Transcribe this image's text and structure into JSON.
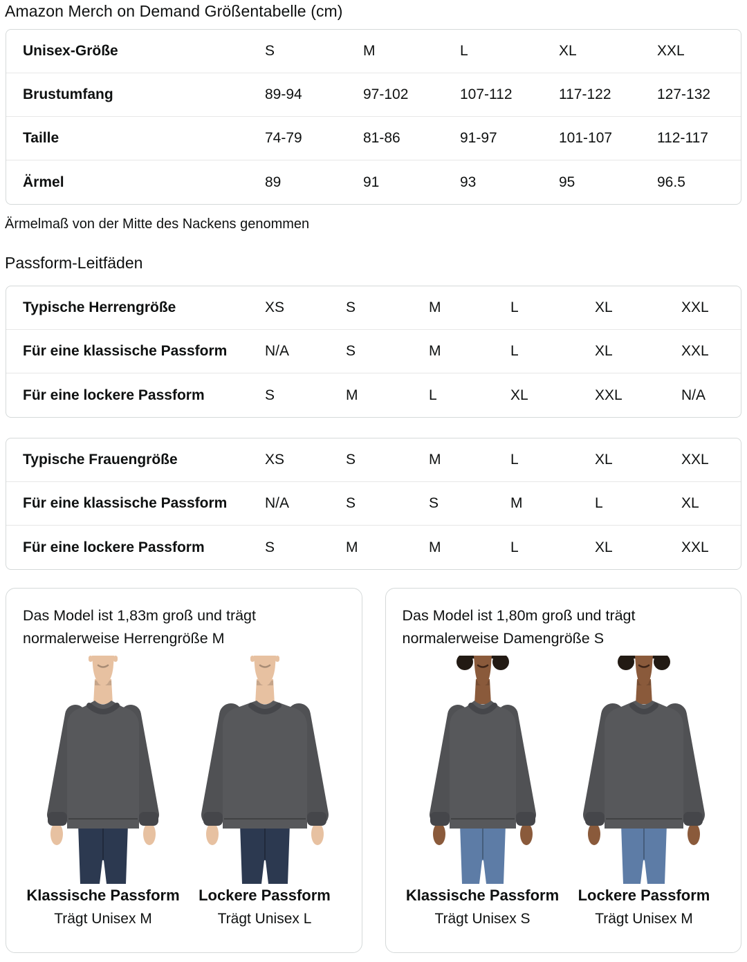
{
  "page": {
    "title": "Amazon Merch on Demand Größentabelle (cm)",
    "note": "Ärmelmaß von der Mitte des Nackens genommen",
    "fit_guides_heading": "Passform-Leitfäden"
  },
  "size_table": {
    "rows": [
      {
        "label": "Unisex-Größe",
        "values": [
          "S",
          "M",
          "L",
          "XL",
          "XXL"
        ]
      },
      {
        "label": "Brustumfang",
        "values": [
          "89-94",
          "97-102",
          "107-112",
          "117-122",
          "127-132"
        ]
      },
      {
        "label": "Taille",
        "values": [
          "74-79",
          "81-86",
          "91-97",
          "101-107",
          "112-117"
        ]
      },
      {
        "label": "Ärmel",
        "values": [
          "89",
          "91",
          "93",
          "95",
          "96.5"
        ]
      }
    ]
  },
  "mens_fit_table": {
    "rows": [
      {
        "label": "Typische Herrengröße",
        "values": [
          "XS",
          "S",
          "M",
          "L",
          "XL",
          "XXL"
        ]
      },
      {
        "label": "Für eine klassische Passform",
        "values": [
          "N/A",
          "S",
          "M",
          "L",
          "XL",
          "XXL"
        ]
      },
      {
        "label": "Für eine lockere Passform",
        "values": [
          "S",
          "M",
          "L",
          "XL",
          "XXL",
          "N/A"
        ]
      }
    ]
  },
  "womens_fit_table": {
    "rows": [
      {
        "label": "Typische Frauengröße",
        "values": [
          "XS",
          "S",
          "M",
          "L",
          "XL",
          "XXL"
        ]
      },
      {
        "label": "Für eine klassische Passform",
        "values": [
          "N/A",
          "S",
          "S",
          "M",
          "L",
          "XL"
        ]
      },
      {
        "label": "Für eine lockere Passform",
        "values": [
          "S",
          "M",
          "M",
          "L",
          "XL",
          "XXL"
        ]
      }
    ]
  },
  "model_cards": [
    {
      "description": "Das Model ist 1,83m groß und trägt normalerweise Herrengröße M",
      "figures": [
        {
          "figure": "male-classic",
          "fit_label": "Klassische Passform",
          "size_label": "Trägt Unisex M"
        },
        {
          "figure": "male-loose",
          "fit_label": "Lockere Passform",
          "size_label": "Trägt Unisex L"
        }
      ]
    },
    {
      "description": "Das Model ist 1,80m groß und trägt normalerweise Damengröße S",
      "figures": [
        {
          "figure": "female-classic",
          "fit_label": "Klassische Passform",
          "size_label": "Trägt Unisex S"
        },
        {
          "figure": "female-loose",
          "fit_label": "Lockere Passform",
          "size_label": "Trägt Unisex M"
        }
      ]
    }
  ],
  "colors": {
    "text": "#0F1111",
    "table_border": "#D5D9D9",
    "row_divider": "#E7E7E7",
    "sweatshirt": "#57585B",
    "sweatshirt_sleeve": "#505154",
    "sweatshirt_trim": "#45464A",
    "jeans_men": "#2C3950",
    "jeans_women": "#5D7CA6",
    "skin_light": "#E7C1A1",
    "skin_dark": "#8A5A3B",
    "hair_dark": "#221A13"
  }
}
